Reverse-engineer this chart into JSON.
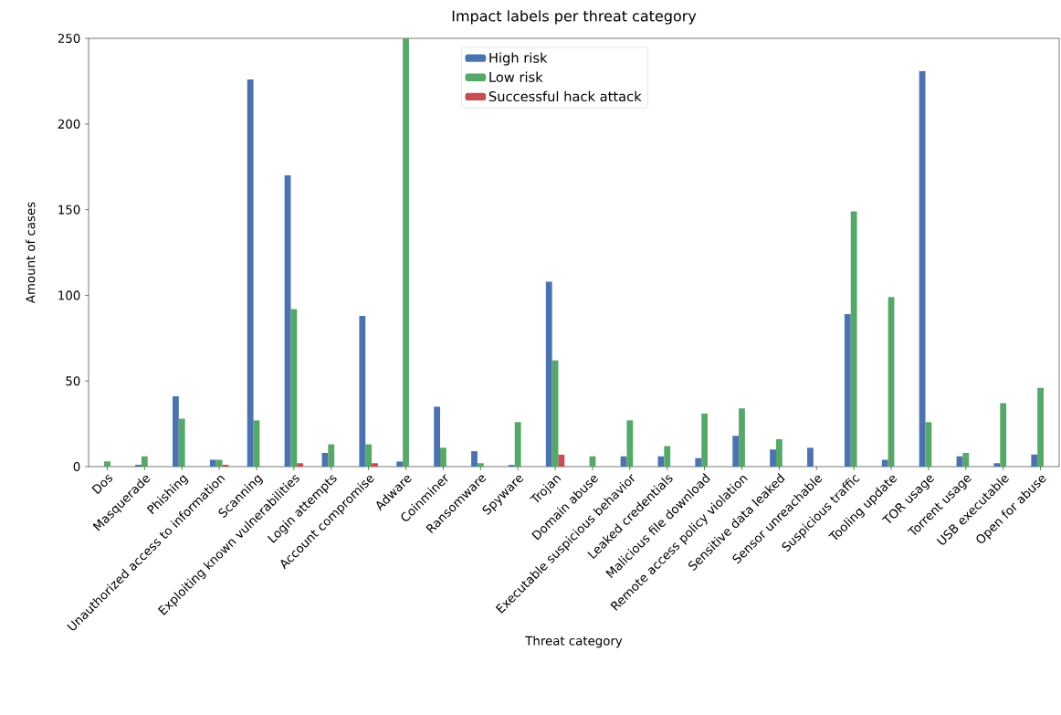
{
  "chart_data": {
    "type": "bar",
    "title": "Impact labels per threat category",
    "xlabel": "Threat category",
    "ylabel": "Amount of cases",
    "categories": [
      "Dos",
      "Masquerade",
      "Phishing",
      "Unauthorized access to information",
      "Scanning",
      "Exploiting known vulnerabilities",
      "Login attempts",
      "Account compromise",
      "Adware",
      "Coinminer",
      "Ransomware",
      "Spyware",
      "Trojan",
      "Domain abuse",
      "Executable suspicious behavior",
      "Leaked credentials",
      "Malicious file download",
      "Remote access policy violation",
      "Sensitive data leaked",
      "Sensor unreachable",
      "Suspicious traffic",
      "Tooling update",
      "TOR usage",
      "Torrent usage",
      "USB executable",
      "Open for abuse"
    ],
    "series": [
      {
        "name": "High risk",
        "color": "#4c72b0",
        "values": [
          0,
          1,
          41,
          4,
          226,
          170,
          8,
          88,
          3,
          35,
          9,
          1,
          108,
          0,
          6,
          6,
          5,
          18,
          10,
          11,
          89,
          4,
          231,
          6,
          2,
          7
        ]
      },
      {
        "name": "Low risk",
        "color": "#55a868",
        "values": [
          3,
          6,
          28,
          4,
          27,
          92,
          13,
          13,
          250,
          11,
          2,
          26,
          62,
          6,
          27,
          12,
          31,
          34,
          16,
          0,
          149,
          99,
          26,
          8,
          37,
          46
        ]
      },
      {
        "name": "Successful hack attack",
        "color": "#c44e52",
        "values": [
          0,
          0,
          0,
          1,
          0,
          2,
          0,
          2,
          0,
          0,
          0,
          0,
          7,
          0,
          0,
          0,
          0,
          0,
          0,
          0,
          0,
          0,
          0,
          0,
          0,
          0
        ]
      }
    ],
    "ylim": [
      0,
      250
    ],
    "yticks": [
      0,
      50,
      100,
      150,
      200,
      250
    ],
    "legend": "top",
    "grid": false
  }
}
